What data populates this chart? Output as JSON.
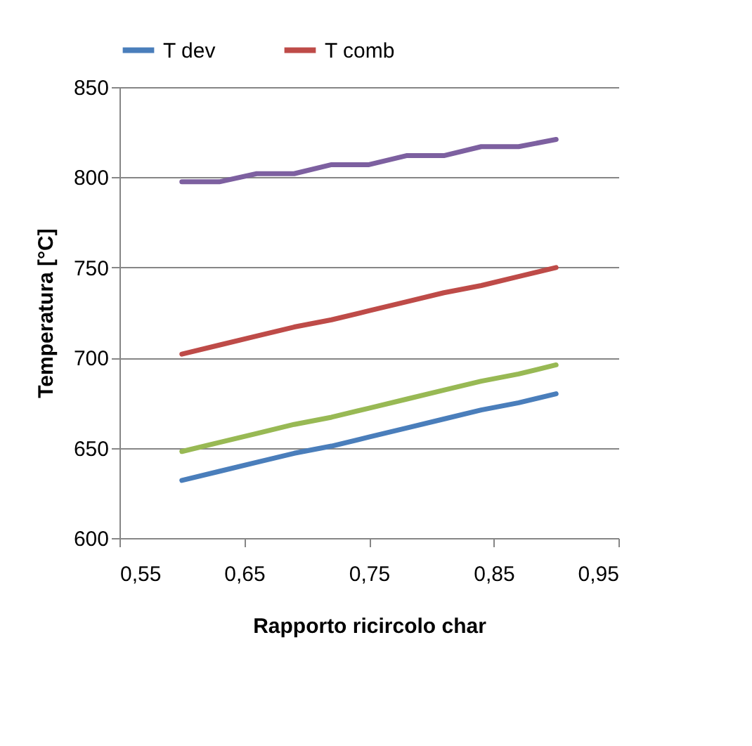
{
  "chart_data": {
    "type": "line",
    "xlabel": "Rapporto  ricircolo char",
    "ylabel": "Temperatura [°C]",
    "x": [
      0.6,
      0.63,
      0.66,
      0.69,
      0.72,
      0.75,
      0.78,
      0.81,
      0.84,
      0.87,
      0.9
    ],
    "series": [
      {
        "name": "T dev",
        "color": "#4a7ebb",
        "values": [
          632,
          637,
          642,
          647,
          651,
          656,
          661,
          666,
          671,
          675,
          680
        ]
      },
      {
        "name": "T comb",
        "color": "#be4b48",
        "values": [
          702,
          707,
          712,
          717,
          721,
          726,
          731,
          736,
          740,
          745,
          750
        ]
      },
      {
        "color": "#98b954",
        "values": [
          648,
          653,
          658,
          663,
          667,
          672,
          677,
          682,
          687,
          691,
          696
        ]
      },
      {
        "color": "#7d60a0",
        "values": [
          797.5,
          797.5,
          802,
          802,
          807,
          807,
          812,
          812,
          817,
          817,
          821
        ]
      }
    ],
    "xlim": [
      0.55,
      0.95
    ],
    "xticks": [
      {
        "value": 0.55,
        "label": "0,55"
      },
      {
        "value": 0.65,
        "label": "0,65"
      },
      {
        "value": 0.75,
        "label": "0,75"
      },
      {
        "value": 0.85,
        "label": "0,85"
      },
      {
        "value": 0.95,
        "label": "0,95"
      }
    ],
    "ylim": [
      600,
      850
    ],
    "yticks": [
      600,
      650,
      700,
      750,
      800,
      850
    ],
    "grid": "y",
    "legend": "top",
    "marker": "none",
    "line_style": "solid"
  }
}
